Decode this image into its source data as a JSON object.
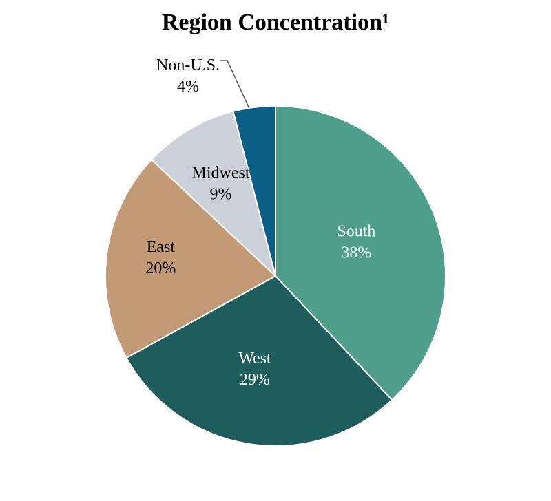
{
  "chart_data": {
    "type": "pie",
    "title": "Region Concentration¹",
    "slices": [
      {
        "label": "South",
        "value": 38,
        "value_label": "38%",
        "color": "#4f9e8c",
        "text_color": "#ffffff"
      },
      {
        "label": "West",
        "value": 29,
        "value_label": "29%",
        "color": "#1e5d5c",
        "text_color": "#ffffff"
      },
      {
        "label": "East",
        "value": 20,
        "value_label": "20%",
        "color": "#c29a75",
        "text_color": "#000000"
      },
      {
        "label": "Midwest",
        "value": 9,
        "value_label": "9%",
        "color": "#ccd0d8",
        "text_color": "#000000"
      },
      {
        "label": "Non-U.S.",
        "value": 4,
        "value_label": "4%",
        "color": "#0b5f86",
        "text_color": "#000000"
      }
    ],
    "start": "top",
    "direction": "clockwise",
    "border_color": "#ffffff"
  }
}
